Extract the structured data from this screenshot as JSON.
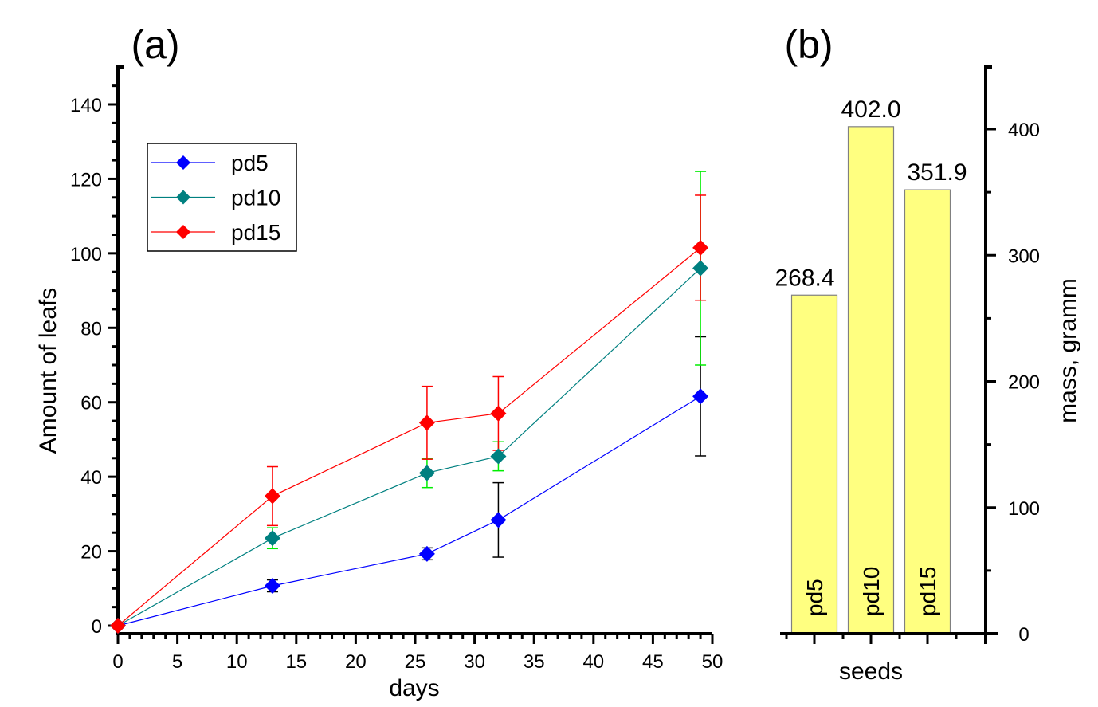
{
  "chart_data": [
    {
      "panel_label": "(a)",
      "type": "line",
      "title": "",
      "xlabel": "days",
      "ylabel": "Amount of leafs",
      "xlim": [
        0,
        50
      ],
      "ylim": [
        -3,
        150
      ],
      "x_ticks": [
        0,
        5,
        10,
        15,
        20,
        25,
        30,
        35,
        40,
        45,
        50
      ],
      "x_tick_labels": [
        "0",
        "5",
        "10",
        "15",
        "20",
        "25",
        "30",
        "35",
        "40",
        "45",
        "50"
      ],
      "y_ticks": [
        0,
        20,
        40,
        60,
        80,
        100,
        120,
        140
      ],
      "y_tick_labels": [
        "0",
        "20",
        "40",
        "60",
        "80",
        "100",
        "120",
        "140"
      ],
      "grid": false,
      "legend_position": "upper-left",
      "x": [
        0,
        13,
        26,
        32,
        49
      ],
      "series": [
        {
          "name": "pd5",
          "color": "#0000ff",
          "error_color": "#000000",
          "values": [
            0,
            10.7,
            19.3,
            28.4,
            61.6
          ],
          "errors": [
            0,
            1.6,
            1.6,
            10.0,
            16.0
          ]
        },
        {
          "name": "pd10",
          "color": "#008080",
          "error_color": "#00ee00",
          "values": [
            0,
            23.5,
            41.0,
            45.5,
            96.0
          ],
          "errors": [
            0,
            2.8,
            3.9,
            3.9,
            26.0
          ]
        },
        {
          "name": "pd15",
          "color": "#ff0000",
          "error_color": "#ff0000",
          "values": [
            0,
            34.8,
            54.5,
            57.0,
            101.5
          ],
          "errors": [
            0,
            7.9,
            9.8,
            9.9,
            14.1
          ]
        }
      ]
    },
    {
      "panel_label": "(b)",
      "type": "bar",
      "title": "",
      "xlabel": "seeds",
      "ylabel": "mass, gramm",
      "y_axis_side": "right",
      "ylim": [
        0,
        450
      ],
      "y_ticks": [
        0,
        100,
        200,
        300,
        400
      ],
      "y_tick_labels": [
        "0",
        "100",
        "200",
        "300",
        "400"
      ],
      "categories": [
        "pd5",
        "pd10",
        "pd15"
      ],
      "values": [
        268.4,
        402.0,
        351.9
      ],
      "value_labels": [
        "268.4",
        "402.0",
        "351.9"
      ],
      "bar_color": "#ffff80",
      "bar_edge_color": "#808080",
      "grid": false
    }
  ]
}
